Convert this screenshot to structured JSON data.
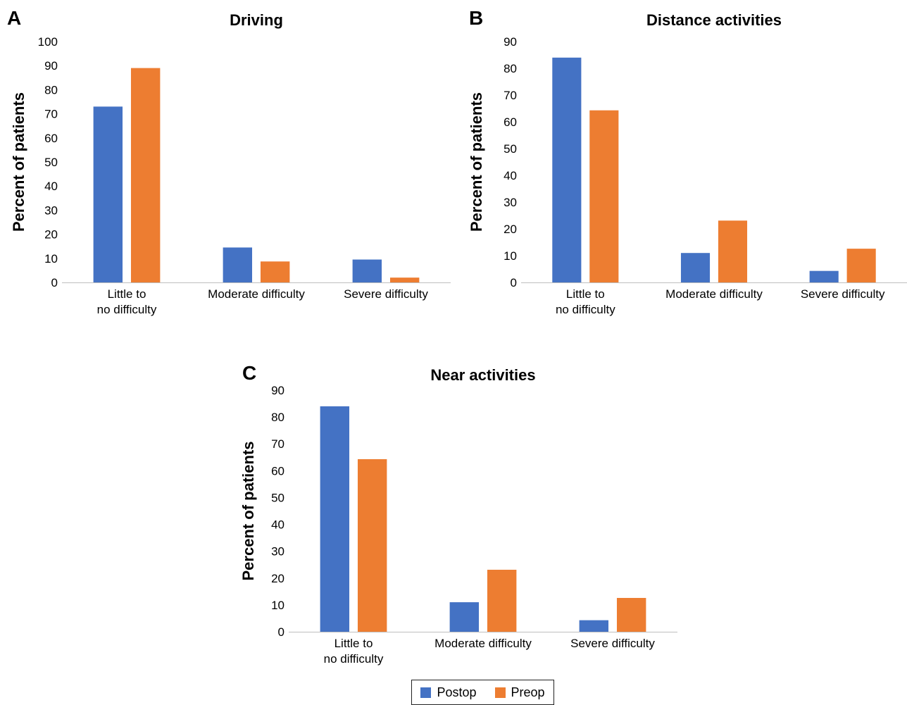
{
  "colors": {
    "postop": "#4472C4",
    "preop": "#ED7D31",
    "axis": "#BFBFBF"
  },
  "chart_data": [
    {
      "panel": "A",
      "type": "bar",
      "title": "Driving",
      "ylabel": "Percent of patients",
      "xlabel": "",
      "ylim": [
        0,
        100
      ],
      "yticks": [
        0,
        10,
        20,
        30,
        40,
        50,
        60,
        70,
        80,
        90,
        100
      ],
      "categories": [
        [
          "Little to",
          "no difficulty"
        ],
        [
          "Moderate difficulty"
        ],
        [
          "Severe difficulty"
        ]
      ],
      "grid": false,
      "series": [
        {
          "name": "Postop",
          "values": [
            73,
            14.5,
            9.5
          ]
        },
        {
          "name": "Preop",
          "values": [
            89,
            8.7,
            2
          ]
        }
      ]
    },
    {
      "panel": "B",
      "type": "bar",
      "title": "Distance activities",
      "ylabel": "Percent of patients",
      "xlabel": "",
      "ylim": [
        0,
        90
      ],
      "yticks": [
        0,
        10,
        20,
        30,
        40,
        50,
        60,
        70,
        80,
        90
      ],
      "categories": [
        [
          "Little to",
          "no difficulty"
        ],
        [
          "Moderate difficulty"
        ],
        [
          "Severe difficulty"
        ]
      ],
      "grid": false,
      "series": [
        {
          "name": "Postop",
          "values": [
            84,
            11,
            4.3
          ]
        },
        {
          "name": "Preop",
          "values": [
            64.3,
            23.1,
            12.6
          ]
        }
      ]
    },
    {
      "panel": "C",
      "type": "bar",
      "title": "Near activities",
      "ylabel": "Percent of patients",
      "xlabel": "",
      "ylim": [
        0,
        90
      ],
      "yticks": [
        0,
        10,
        20,
        30,
        40,
        50,
        60,
        70,
        80,
        90
      ],
      "categories": [
        [
          "Little to",
          "no difficulty"
        ],
        [
          "Moderate difficulty"
        ],
        [
          "Severe difficulty"
        ]
      ],
      "grid": false,
      "series": [
        {
          "name": "Postop",
          "values": [
            84,
            11,
            4.3
          ]
        },
        {
          "name": "Preop",
          "values": [
            64.3,
            23.1,
            12.6
          ]
        }
      ]
    }
  ],
  "legend": {
    "placement": "bottom-center",
    "items": [
      {
        "label": "Postop",
        "color": "#4472C4"
      },
      {
        "label": "Preop",
        "color": "#ED7D31"
      }
    ]
  }
}
